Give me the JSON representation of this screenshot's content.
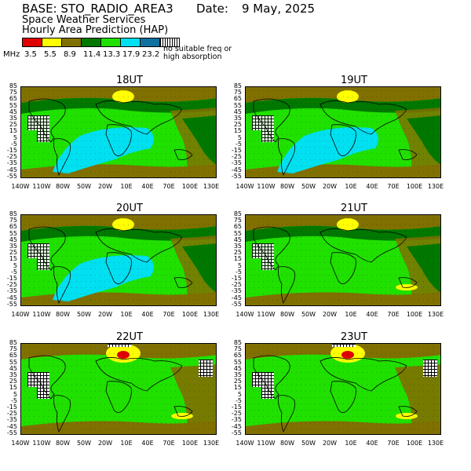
{
  "header": {
    "base": "BASE: STO_RADIO_AREA3",
    "date_label": "Date:",
    "date_value": "9 May, 2025",
    "org": "Space Weather Services",
    "product": "Hourly Area Prediction (HAP)"
  },
  "legend": {
    "unit": "MHz",
    "colors": [
      "#e00000",
      "#ffff00",
      "#807000",
      "#007800",
      "#20e000",
      "#00e0f0",
      "#1070a0"
    ],
    "values": [
      "3.5",
      "5.5",
      "8.9",
      "11.4",
      "13.3",
      "17.9",
      "23.2"
    ],
    "no_suitable": "no suitable freq or\nhigh absorption"
  },
  "axes": {
    "lat_ticks": [
      "85",
      "75",
      "65",
      "55",
      "45",
      "35",
      "25",
      "15",
      "5",
      "-5",
      "-15",
      "-25",
      "-35",
      "-45",
      "-55"
    ],
    "lon_ticks": [
      "140W",
      "110W",
      "80W",
      "50W",
      "20W",
      "10E",
      "40E",
      "70E",
      "100E",
      "130E"
    ]
  },
  "panels": [
    {
      "title": "18UT"
    },
    {
      "title": "19UT"
    },
    {
      "title": "20UT"
    },
    {
      "title": "21UT"
    },
    {
      "title": "22UT"
    },
    {
      "title": "23UT"
    }
  ]
}
